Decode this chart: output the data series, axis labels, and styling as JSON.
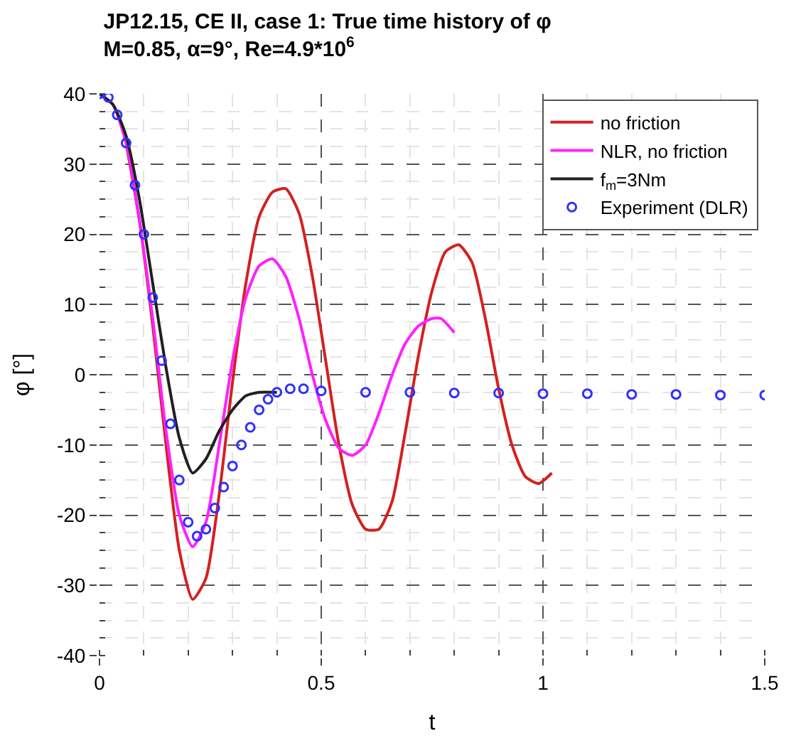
{
  "chart_data": {
    "type": "line",
    "title": "JP12.15, CE II, case 1: True time history of φ",
    "subtitle": "M=0.85, α=9°, Re=4.9*10$^{6}$",
    "xlabel": "t",
    "ylabel": "φ [°]",
    "xlim": [
      0,
      1.5
    ],
    "xticks": [
      0,
      0.5,
      1,
      1.5
    ],
    "ylim": [
      -40,
      40
    ],
    "yticks": [
      -40,
      -30,
      -20,
      -10,
      0,
      10,
      20,
      30,
      40
    ],
    "grid": true,
    "legend": "top right",
    "line_style": "solid",
    "series": [
      {
        "name": "no friction",
        "color": "#d42020",
        "x": [
          0.06,
          0.09,
          0.12,
          0.15,
          0.18,
          0.21,
          0.24,
          0.27,
          0.3,
          0.33,
          0.36,
          0.39,
          0.42,
          0.45,
          0.48,
          0.51,
          0.54,
          0.57,
          0.6,
          0.63,
          0.66,
          0.69,
          0.72,
          0.75,
          0.78,
          0.81,
          0.84,
          0.87,
          0.9,
          0.93,
          0.96,
          0.99,
          1.02
        ],
        "values": [
          33,
          22,
          7,
          -10,
          -25,
          -32,
          -29,
          -17,
          -1,
          13,
          22.5,
          26,
          26.5,
          23,
          14,
          2,
          -10,
          -18.5,
          -22,
          -22,
          -18,
          -8,
          3,
          12,
          17.5,
          18.5,
          16,
          8,
          -2,
          -10,
          -14.5,
          -15.5,
          -14
        ]
      },
      {
        "name": "NLR, no friction",
        "color": "#ff20ff",
        "x": [
          0,
          0.03,
          0.06,
          0.09,
          0.12,
          0.15,
          0.18,
          0.21,
          0.24,
          0.27,
          0.3,
          0.33,
          0.36,
          0.39,
          0.42,
          0.45,
          0.48,
          0.51,
          0.54,
          0.57,
          0.6,
          0.63,
          0.66,
          0.69,
          0.72,
          0.75,
          0.77,
          0.8
        ],
        "values": [
          40,
          38.5,
          33,
          22,
          8,
          -8,
          -20,
          -24.5,
          -21,
          -10,
          2,
          11,
          15.5,
          16.5,
          14,
          8,
          0,
          -6.5,
          -10.5,
          -11.5,
          -10,
          -5.5,
          0,
          4.5,
          7,
          8,
          8,
          6
        ]
      },
      {
        "name": "f$_{m}$=3Nm",
        "color": "#202020",
        "x": [
          0,
          0.03,
          0.06,
          0.09,
          0.12,
          0.15,
          0.18,
          0.21,
          0.24,
          0.27,
          0.3,
          0.33,
          0.36,
          0.4
        ],
        "values": [
          40,
          38.5,
          34,
          25,
          13,
          1,
          -9,
          -14,
          -12,
          -8,
          -5,
          -3,
          -2.5,
          -2.5
        ]
      },
      {
        "name": "Experiment (DLR)",
        "type": "scatter",
        "marker": "circle",
        "color": "#3030ff",
        "x": [
          0,
          0.02,
          0.04,
          0.06,
          0.08,
          0.1,
          0.12,
          0.14,
          0.16,
          0.18,
          0.2,
          0.22,
          0.24,
          0.26,
          0.28,
          0.3,
          0.32,
          0.34,
          0.36,
          0.38,
          0.4,
          0.43,
          0.46,
          0.5,
          0.6,
          0.7,
          0.8,
          0.9,
          1.0,
          1.1,
          1.2,
          1.3,
          1.4,
          1.5
        ],
        "values": [
          40,
          39.5,
          37,
          33,
          27,
          20,
          11,
          2,
          -7,
          -15,
          -21,
          -23,
          -22,
          -19,
          -16,
          -13,
          -10,
          -7.5,
          -5,
          -3.5,
          -2.5,
          -2,
          -2,
          -2.3,
          -2.5,
          -2.5,
          -2.6,
          -2.6,
          -2.7,
          -2.7,
          -2.8,
          -2.8,
          -2.9,
          -2.9
        ]
      }
    ]
  }
}
